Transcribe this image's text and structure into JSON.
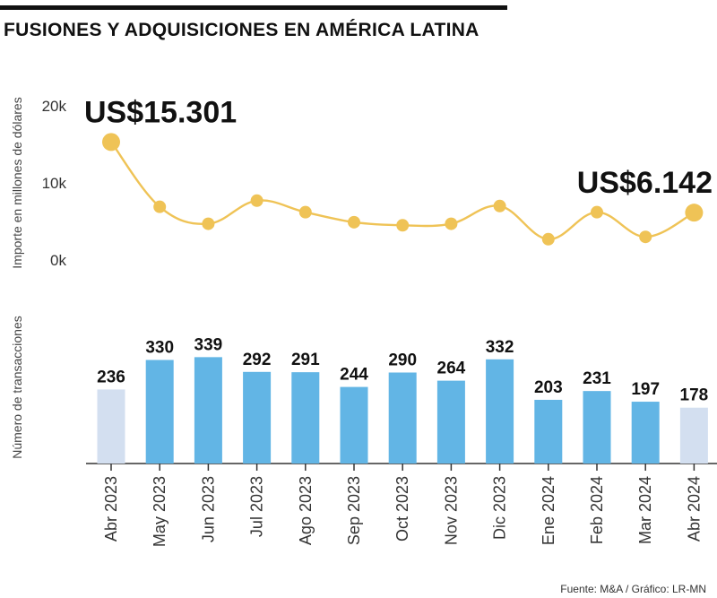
{
  "title": "FUSIONES Y ADQUISICIONES EN AMÉRICA LATINA",
  "source": "Fuente: M&A  / Gráfico: LR-MN",
  "colors": {
    "line": "#efc356",
    "bar": "#62b5e5",
    "bar_highlight": "#d3dff0",
    "text": "#1a1a1a",
    "axis": "#333333"
  },
  "chart_data": [
    {
      "type": "line",
      "ylabel": "Importe en millones de dólares",
      "ylim": [
        0,
        20000
      ],
      "yticks": [
        {
          "value": 0,
          "label": "0k"
        },
        {
          "value": 10000,
          "label": "10k"
        },
        {
          "value": 20000,
          "label": "20k"
        }
      ],
      "categories": [
        "Abr 2023",
        "May 2023",
        "Jun 2023",
        "Jul 2023",
        "Ago 2023",
        "Sep 2023",
        "Oct 2023",
        "Nov 2023",
        "Dic 2023",
        "Ene 2024",
        "Feb 2024",
        "Mar 2024",
        "Abr 2024"
      ],
      "values": [
        15301,
        6900,
        4700,
        7700,
        6200,
        4900,
        4500,
        4700,
        7000,
        2700,
        6200,
        3000,
        6142
      ],
      "annotations": [
        {
          "index": 0,
          "text": "US$15.301"
        },
        {
          "index": 12,
          "text": "US$6.142"
        }
      ]
    },
    {
      "type": "bar",
      "ylabel": "Número de transacciones",
      "categories": [
        "Abr 2023",
        "May 2023",
        "Jun 2023",
        "Jul 2023",
        "Ago 2023",
        "Sep 2023",
        "Oct 2023",
        "Nov 2023",
        "Dic 2023",
        "Ene 2024",
        "Feb 2024",
        "Mar 2024",
        "Abr 2024"
      ],
      "values": [
        236,
        330,
        339,
        292,
        291,
        244,
        290,
        264,
        332,
        203,
        231,
        197,
        178
      ],
      "highlight": [
        0,
        12
      ]
    }
  ]
}
